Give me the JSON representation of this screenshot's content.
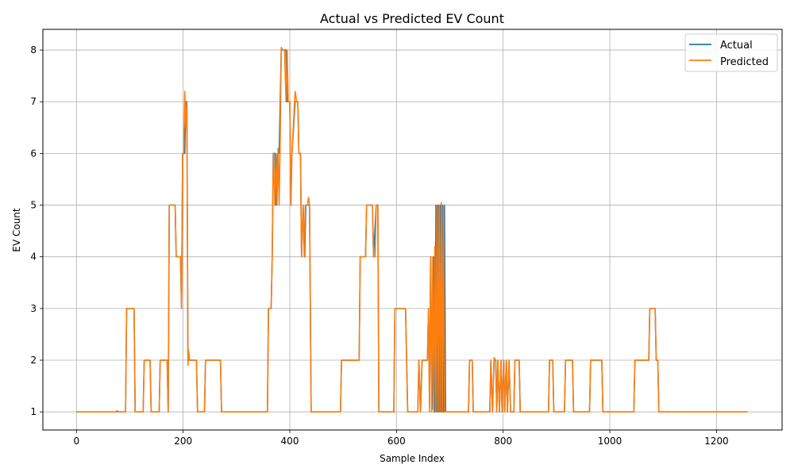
{
  "chart_data": {
    "type": "line",
    "title": "Actual vs Predicted EV Count",
    "xlabel": "Sample Index",
    "ylabel": "EV Count",
    "xlim": [
      -63,
      1323
    ],
    "ylim": [
      0.65,
      8.4
    ],
    "xticks": [
      0,
      200,
      400,
      600,
      800,
      1000,
      1200
    ],
    "yticks": [
      1,
      2,
      3,
      4,
      5,
      6,
      7,
      8
    ],
    "grid": true,
    "legend": "top-right",
    "series": [
      {
        "name": "Actual",
        "color": "#1f77b4",
        "points": [
          [
            0,
            1
          ],
          [
            75,
            1
          ],
          [
            76,
            1.02
          ],
          [
            78,
            1
          ],
          [
            92,
            1
          ],
          [
            94,
            3
          ],
          [
            108,
            3
          ],
          [
            110,
            1
          ],
          [
            125,
            1
          ],
          [
            127,
            2
          ],
          [
            138,
            2
          ],
          [
            140,
            1
          ],
          [
            155,
            1
          ],
          [
            157,
            2
          ],
          [
            170,
            2
          ],
          [
            172,
            1
          ],
          [
            174,
            5
          ],
          [
            185,
            5
          ],
          [
            187,
            4
          ],
          [
            195,
            4
          ],
          [
            197,
            3
          ],
          [
            199,
            6
          ],
          [
            203,
            6
          ],
          [
            205,
            7
          ],
          [
            207,
            7
          ],
          [
            209,
            2
          ],
          [
            225,
            2
          ],
          [
            227,
            1
          ],
          [
            240,
            1
          ],
          [
            242,
            2
          ],
          [
            270,
            2
          ],
          [
            272,
            1
          ],
          [
            358,
            1
          ],
          [
            360,
            3
          ],
          [
            365,
            3
          ],
          [
            367,
            4
          ],
          [
            369,
            6
          ],
          [
            372,
            6
          ],
          [
            374,
            5
          ],
          [
            377,
            6
          ],
          [
            380,
            6
          ],
          [
            382,
            7
          ],
          [
            384,
            8
          ],
          [
            393,
            8
          ],
          [
            395,
            7
          ],
          [
            400,
            7
          ],
          [
            402,
            5
          ],
          [
            404,
            6
          ],
          [
            410,
            7
          ],
          [
            415,
            7
          ],
          [
            417,
            6
          ],
          [
            420,
            6
          ],
          [
            422,
            4
          ],
          [
            425,
            5
          ],
          [
            428,
            4
          ],
          [
            430,
            5
          ],
          [
            435,
            5
          ],
          [
            437,
            5
          ],
          [
            440,
            1
          ],
          [
            495,
            1
          ],
          [
            497,
            2
          ],
          [
            530,
            2
          ],
          [
            532,
            4
          ],
          [
            542,
            4
          ],
          [
            544,
            5
          ],
          [
            555,
            5
          ],
          [
            557,
            4
          ],
          [
            562,
            5
          ],
          [
            565,
            5
          ],
          [
            567,
            1
          ],
          [
            595,
            1
          ],
          [
            597,
            3
          ],
          [
            617,
            3
          ],
          [
            619,
            2
          ],
          [
            621,
            1
          ],
          [
            640,
            1
          ],
          [
            642,
            2
          ],
          [
            645,
            1
          ],
          [
            648,
            2
          ],
          [
            658,
            2
          ],
          [
            660,
            3
          ],
          [
            662,
            1.1
          ],
          [
            664,
            4
          ],
          [
            667,
            1.05
          ],
          [
            670,
            4
          ],
          [
            672,
            1
          ],
          [
            674,
            5
          ],
          [
            676,
            1
          ],
          [
            678,
            5
          ],
          [
            680,
            1
          ],
          [
            682,
            5
          ],
          [
            684,
            1
          ],
          [
            686,
            5
          ],
          [
            688,
            1
          ],
          [
            690,
            5
          ],
          [
            692,
            1
          ],
          [
            735,
            1
          ],
          [
            737,
            2
          ],
          [
            742,
            2
          ],
          [
            744,
            1
          ],
          [
            775,
            1
          ],
          [
            777,
            2
          ],
          [
            780,
            1
          ],
          [
            783,
            2
          ],
          [
            786,
            2
          ],
          [
            788,
            1
          ],
          [
            790,
            2
          ],
          [
            793,
            1
          ],
          [
            796,
            2
          ],
          [
            798,
            1
          ],
          [
            801,
            2
          ],
          [
            803,
            1
          ],
          [
            806,
            2
          ],
          [
            808,
            1
          ],
          [
            811,
            2
          ],
          [
            814,
            1
          ],
          [
            820,
            1
          ],
          [
            822,
            2
          ],
          [
            830,
            2
          ],
          [
            832,
            1
          ],
          [
            885,
            1
          ],
          [
            887,
            2
          ],
          [
            893,
            2
          ],
          [
            895,
            1
          ],
          [
            915,
            1
          ],
          [
            917,
            2
          ],
          [
            930,
            2
          ],
          [
            932,
            1
          ],
          [
            962,
            1
          ],
          [
            964,
            2
          ],
          [
            985,
            2
          ],
          [
            987,
            1
          ],
          [
            1045,
            1
          ],
          [
            1047,
            2
          ],
          [
            1073,
            2
          ],
          [
            1075,
            3
          ],
          [
            1085,
            3
          ],
          [
            1087,
            2
          ],
          [
            1090,
            2
          ],
          [
            1092,
            1
          ],
          [
            1258,
            1
          ]
        ]
      },
      {
        "name": "Predicted",
        "color": "#ff7f0e",
        "points": [
          [
            0,
            1
          ],
          [
            92,
            1
          ],
          [
            94,
            3
          ],
          [
            108,
            3
          ],
          [
            110,
            1
          ],
          [
            125,
            1
          ],
          [
            127,
            2
          ],
          [
            138,
            2
          ],
          [
            140,
            1
          ],
          [
            155,
            1
          ],
          [
            157,
            2
          ],
          [
            170,
            2
          ],
          [
            172,
            1
          ],
          [
            174,
            5
          ],
          [
            185,
            5
          ],
          [
            187,
            4
          ],
          [
            195,
            4
          ],
          [
            197,
            3
          ],
          [
            199,
            6
          ],
          [
            201,
            6
          ],
          [
            203,
            7.2
          ],
          [
            205,
            6.5
          ],
          [
            207,
            7
          ],
          [
            209,
            1.9
          ],
          [
            210,
            2.2
          ],
          [
            212,
            2
          ],
          [
            225,
            2
          ],
          [
            227,
            1
          ],
          [
            240,
            1
          ],
          [
            242,
            2
          ],
          [
            270,
            2
          ],
          [
            272,
            1
          ],
          [
            358,
            1
          ],
          [
            360,
            3
          ],
          [
            365,
            3
          ],
          [
            367,
            4
          ],
          [
            369,
            6
          ],
          [
            372,
            5
          ],
          [
            374,
            6
          ],
          [
            376,
            5
          ],
          [
            378,
            6.1
          ],
          [
            380,
            5
          ],
          [
            382,
            6.3
          ],
          [
            384,
            8.05
          ],
          [
            387,
            8
          ],
          [
            390,
            8
          ],
          [
            393,
            7
          ],
          [
            395,
            8
          ],
          [
            397,
            7
          ],
          [
            400,
            7
          ],
          [
            402,
            5
          ],
          [
            404,
            6
          ],
          [
            410,
            7.2
          ],
          [
            413,
            7
          ],
          [
            415,
            7
          ],
          [
            417,
            6
          ],
          [
            420,
            6
          ],
          [
            422,
            4
          ],
          [
            425,
            5
          ],
          [
            427,
            4
          ],
          [
            429,
            5
          ],
          [
            433,
            5
          ],
          [
            435,
            5.15
          ],
          [
            437,
            5
          ],
          [
            440,
            1
          ],
          [
            495,
            1
          ],
          [
            497,
            2
          ],
          [
            530,
            2
          ],
          [
            532,
            4
          ],
          [
            542,
            4
          ],
          [
            544,
            5
          ],
          [
            555,
            5
          ],
          [
            557,
            4
          ],
          [
            560,
            4
          ],
          [
            562,
            5
          ],
          [
            565,
            5
          ],
          [
            567,
            1
          ],
          [
            595,
            1
          ],
          [
            597,
            3
          ],
          [
            617,
            3
          ],
          [
            619,
            2
          ],
          [
            621,
            1
          ],
          [
            640,
            1
          ],
          [
            642,
            2
          ],
          [
            645,
            1
          ],
          [
            648,
            2
          ],
          [
            658,
            2
          ],
          [
            660,
            3
          ],
          [
            662,
            1
          ],
          [
            664,
            4
          ],
          [
            666,
            1
          ],
          [
            668,
            4
          ],
          [
            670,
            1
          ],
          [
            672,
            4.2
          ],
          [
            674,
            1
          ],
          [
            676,
            5
          ],
          [
            678,
            1
          ],
          [
            680,
            5
          ],
          [
            682,
            1
          ],
          [
            684,
            5.05
          ],
          [
            686,
            1
          ],
          [
            688,
            5
          ],
          [
            690,
            1
          ],
          [
            692,
            1
          ],
          [
            735,
            1
          ],
          [
            737,
            2
          ],
          [
            742,
            2
          ],
          [
            744,
            1
          ],
          [
            775,
            1
          ],
          [
            777,
            2
          ],
          [
            780,
            1
          ],
          [
            783,
            2.05
          ],
          [
            786,
            2
          ],
          [
            788,
            1
          ],
          [
            790,
            2
          ],
          [
            793,
            1
          ],
          [
            796,
            2
          ],
          [
            798,
            1
          ],
          [
            801,
            2
          ],
          [
            803,
            1
          ],
          [
            806,
            2
          ],
          [
            808,
            1
          ],
          [
            811,
            2
          ],
          [
            814,
            1
          ],
          [
            820,
            1
          ],
          [
            822,
            2
          ],
          [
            830,
            2
          ],
          [
            832,
            1
          ],
          [
            885,
            1
          ],
          [
            887,
            2
          ],
          [
            893,
            2
          ],
          [
            895,
            1
          ],
          [
            915,
            1
          ],
          [
            917,
            2
          ],
          [
            930,
            2
          ],
          [
            932,
            1
          ],
          [
            962,
            1
          ],
          [
            964,
            2
          ],
          [
            985,
            2
          ],
          [
            987,
            1
          ],
          [
            1045,
            1
          ],
          [
            1047,
            2
          ],
          [
            1073,
            2
          ],
          [
            1075,
            3
          ],
          [
            1085,
            3
          ],
          [
            1087,
            2
          ],
          [
            1090,
            2
          ],
          [
            1092,
            1
          ],
          [
            1258,
            1
          ]
        ]
      }
    ]
  }
}
